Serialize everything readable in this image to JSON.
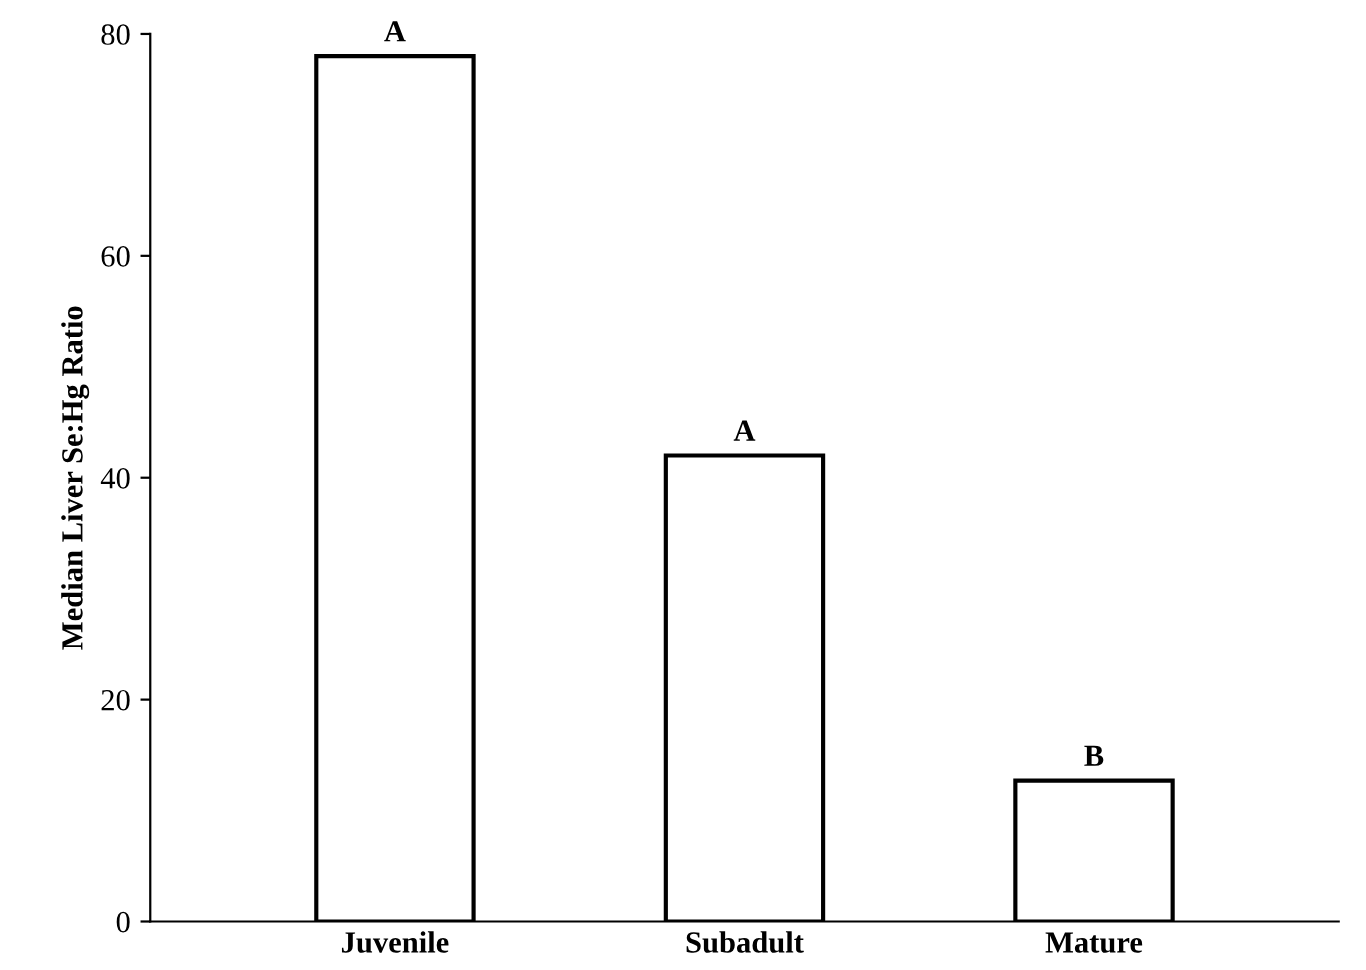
{
  "chart_data": {
    "type": "bar",
    "ylabel": "Median Liver Se:Hg Ratio",
    "categories": [
      "Juvenile",
      "Subadult",
      "Mature"
    ],
    "values": [
      78,
      42,
      12.7
    ],
    "color": "#ffffff",
    "ylim": [
      0,
      80
    ],
    "yticks": [
      0,
      20,
      40,
      60,
      80
    ],
    "grid": false,
    "annotations": [
      {
        "text": "A",
        "x": "Juvenile",
        "y": 78
      },
      {
        "text": "A",
        "x": "Subadult",
        "y": 42
      },
      {
        "text": "B",
        "x": "Mature",
        "y": 12.7
      }
    ]
  }
}
